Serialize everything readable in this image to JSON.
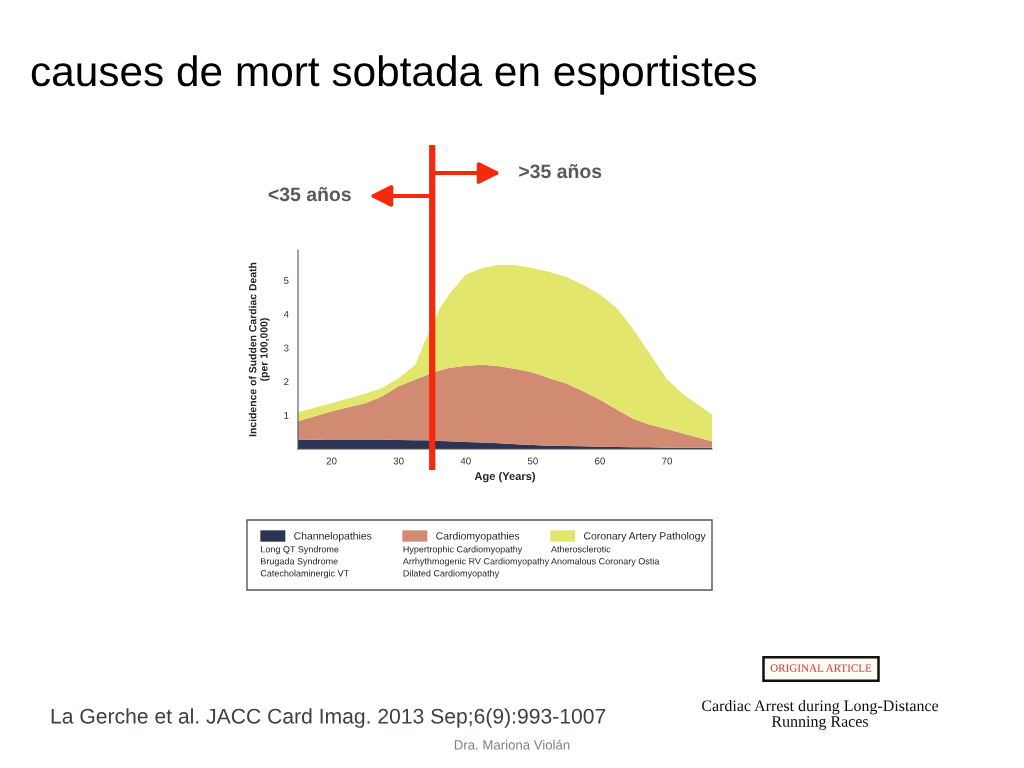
{
  "chart_data": {
    "type": "area",
    "stacked": true,
    "title": "causes de mort sobtada en esportistes",
    "xlabel": "Age (Years)",
    "ylabel": "Incidence of Sudden Cardiac Death\n(per 100,000)",
    "x": [
      15,
      20,
      25,
      27.5,
      30,
      32.5,
      34,
      35,
      36,
      37.5,
      40,
      42.5,
      45,
      47.5,
      50,
      52.5,
      55,
      57.5,
      60,
      62.5,
      65,
      67.5,
      70,
      72.5,
      76.7
    ],
    "series": [
      {
        "name": "Channelopathies",
        "color": "#2c3454",
        "values": [
          0.27,
          0.28,
          0.28,
          0.28,
          0.27,
          0.26,
          0.26,
          0.25,
          0.24,
          0.23,
          0.21,
          0.19,
          0.17,
          0.14,
          0.12,
          0.1,
          0.09,
          0.08,
          0.07,
          0.06,
          0.05,
          0.05,
          0.04,
          0.04,
          0.04
        ]
      },
      {
        "name": "Cardiomyopathies",
        "color": "#d18b73",
        "values": [
          0.55,
          0.84,
          1.08,
          1.28,
          1.59,
          1.8,
          1.92,
          2.0,
          2.08,
          2.17,
          2.26,
          2.31,
          2.28,
          2.23,
          2.15,
          2.0,
          1.85,
          1.63,
          1.39,
          1.11,
          0.84,
          0.67,
          0.55,
          0.41,
          0.19
        ]
      },
      {
        "name": "Coronary Artery Pathology",
        "color": "#e2e66c",
        "values": [
          0.27,
          0.24,
          0.28,
          0.25,
          0.24,
          0.44,
          1.06,
          1.39,
          1.81,
          2.18,
          2.7,
          2.87,
          3.01,
          3.08,
          3.1,
          3.15,
          3.16,
          3.16,
          3.12,
          3.01,
          2.65,
          2.08,
          1.47,
          1.16,
          0.79
        ]
      }
    ],
    "xlim": [
      15,
      76.7
    ],
    "xticks": [
      20,
      30,
      40,
      50,
      60,
      70
    ],
    "ylim": [
      0,
      5.9
    ],
    "yticks": [
      1,
      2,
      3,
      4,
      5
    ],
    "legend": "bottom",
    "ref_lines": [
      {
        "axis": "x",
        "value": 35,
        "color": "#f52a0c"
      }
    ],
    "annotations": [
      "Long QT Syndrome\nBrugada Syndrome\nCatecholaminergic VT",
      "Hypertrophic Cardiomyopathy\nArrhythmogenic RV Cardiomyopathy\nDilated Cardiomyopathy",
      "Atherosclerotic\nAnomalous Coronary Ostia",
      "<35 años",
      ">35 años",
      "La Gerche et al. JACC Card Imag. 2013 Sep;6(9):993-1007",
      "ORIGINAL ARTICLE",
      "Cardiac Arrest during Long-Distance\nRunning Races",
      "Dra. Mariona Violán"
    ]
  }
}
